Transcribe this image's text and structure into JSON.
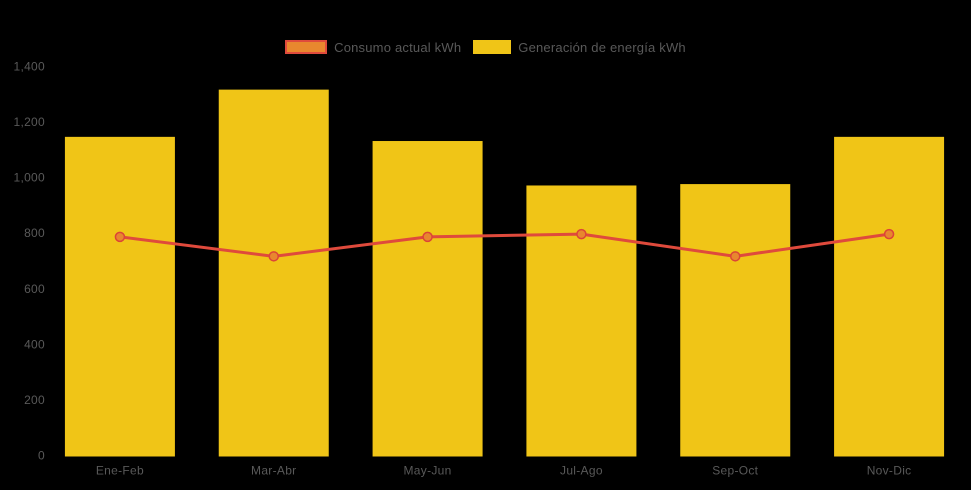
{
  "legend": {
    "items": [
      {
        "label": "Consumo actual kWh",
        "swatch_fill": "#E8872E",
        "swatch_border": "#DF4A3C"
      },
      {
        "label": "Generación de energía kWh",
        "swatch_fill": "#F0C517",
        "swatch_border": "#F0C517"
      }
    ]
  },
  "chart_data": {
    "type": "bar",
    "title": "",
    "xlabel": "",
    "ylabel": "",
    "categories": [
      "Ene-Feb",
      "Mar-Abr",
      "May-Jun",
      "Jul-Ago",
      "Sep-Oct",
      "Nov-Dic"
    ],
    "series": [
      {
        "name": "Generación de energía kWh",
        "type": "bar",
        "values": [
          1145,
          1315,
          1130,
          970,
          975,
          1145
        ],
        "color": "#F0C517"
      },
      {
        "name": "Consumo actual kWh",
        "type": "line",
        "values": [
          785,
          715,
          785,
          795,
          715,
          795
        ],
        "color": "#DF4A3C",
        "marker_fill": "#E8872E",
        "marker_stroke": "#DC4437"
      }
    ],
    "ylim": [
      0,
      1400
    ],
    "ytick_step": 200,
    "ytick_labels": [
      "0",
      "200",
      "400",
      "600",
      "800",
      "1,000",
      "1,200",
      "1,400"
    ],
    "grid": false,
    "legend_position": "top-center",
    "background": "#000000",
    "text_color": "#595959"
  }
}
